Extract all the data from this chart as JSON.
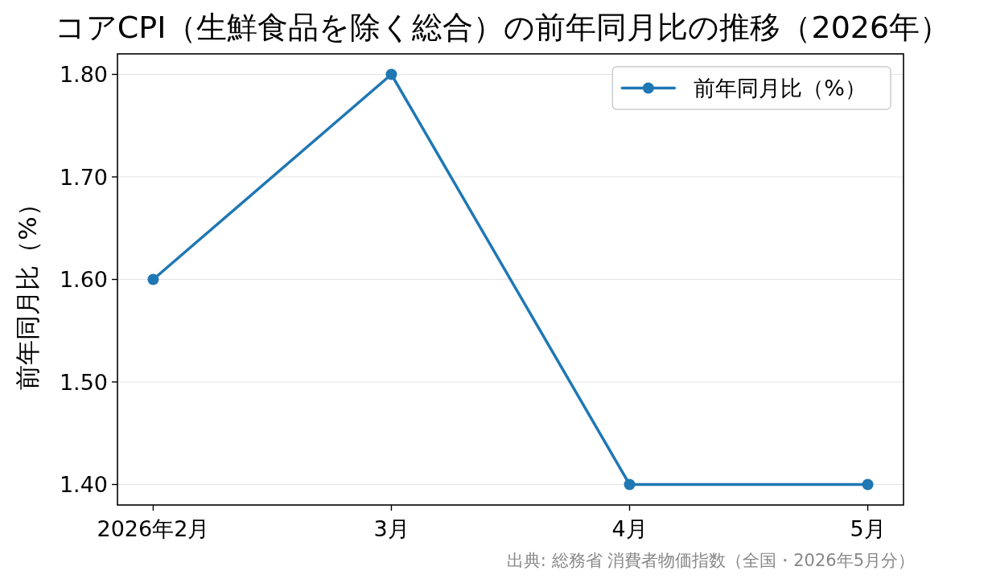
{
  "chart_data": {
    "type": "line",
    "title": "コアCPI（生鮮食品を除く総合）の前年同月比の推移（2026年）",
    "categories": [
      "2026年2月",
      "3月",
      "4月",
      "5月"
    ],
    "series": [
      {
        "name": "前年同月比（%）",
        "color": "#1f77b4",
        "values": [
          1.6,
          1.8,
          1.4,
          1.4
        ]
      }
    ],
    "ylabel": "前年同月比（%）",
    "ylim": [
      1.38,
      1.82
    ],
    "yticks": [
      {
        "value": 1.4,
        "label": "1.40"
      },
      {
        "value": 1.5,
        "label": "1.50"
      },
      {
        "value": 1.6,
        "label": "1.60"
      },
      {
        "value": 1.7,
        "label": "1.70"
      },
      {
        "value": 1.8,
        "label": "1.80"
      }
    ],
    "grid": "y",
    "legend": "top right",
    "marker": "circle",
    "line_style": "solid",
    "annotations": [
      "出典: 総務省 消費者物価指数（全国・2026年5月分）"
    ]
  }
}
